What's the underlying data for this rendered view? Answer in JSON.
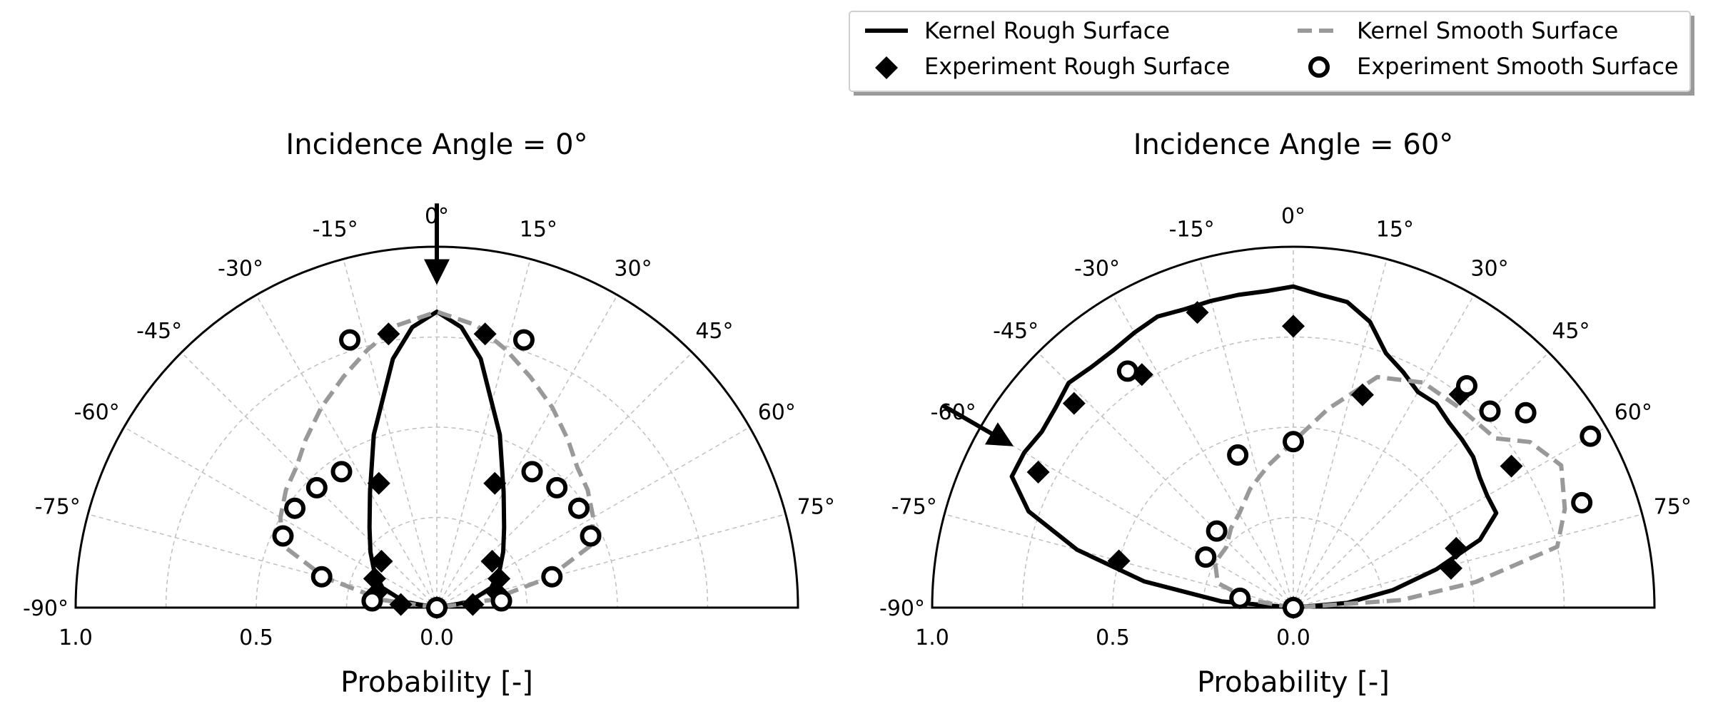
{
  "legend": {
    "items": [
      {
        "label": "Kernel Rough Surface",
        "marker": "solid-line",
        "color": "#000000"
      },
      {
        "label": "Kernel Smooth Surface",
        "marker": "dashed-line",
        "color": "#999999"
      },
      {
        "label": "Experiment Rough Surface",
        "marker": "diamond",
        "color": "#000000"
      },
      {
        "label": "Experiment Smooth Surface",
        "marker": "open-circle",
        "color": "#000000"
      }
    ]
  },
  "chart_data": [
    {
      "type": "polar-half",
      "title": "Incidence Angle = 0°",
      "xlabel": "Probability [-]",
      "radial_range": [
        0,
        1.0
      ],
      "angle_range_deg": [
        -90,
        90
      ],
      "angle_ticks": [
        -90,
        -75,
        -60,
        -45,
        -30,
        -15,
        0,
        15,
        30,
        45,
        60,
        75
      ],
      "angle_tick_labels": [
        "-90°",
        "-75°",
        "-60°",
        "-45°",
        "-30°",
        "-15°",
        "0°",
        "15°",
        "30°",
        "45°",
        "60°",
        "75°"
      ],
      "radial_tick_labels": [
        "1.0",
        "0.5",
        "0.0"
      ],
      "radial_tick_values": [
        1.0,
        0.5,
        0.0
      ],
      "grid": true,
      "incidence_arrow_deg": 0,
      "series": [
        {
          "name": "Kernel Rough Surface",
          "style": "line",
          "points": [
            [
              -90,
              0
            ],
            [
              -80,
              0.09
            ],
            [
              -70,
              0.16
            ],
            [
              -60,
              0.2
            ],
            [
              -50,
              0.24
            ],
            [
              -40,
              0.29
            ],
            [
              -30,
              0.37
            ],
            [
              -20,
              0.51
            ],
            [
              -10,
              0.7
            ],
            [
              -5,
              0.78
            ],
            [
              0,
              0.82
            ],
            [
              5,
              0.78
            ],
            [
              10,
              0.7
            ],
            [
              20,
              0.51
            ],
            [
              30,
              0.37
            ],
            [
              40,
              0.29
            ],
            [
              50,
              0.24
            ],
            [
              60,
              0.2
            ],
            [
              70,
              0.16
            ],
            [
              80,
              0.09
            ],
            [
              90,
              0
            ]
          ]
        },
        {
          "name": "Kernel Smooth Surface",
          "style": "dashed",
          "points": [
            [
              -90,
              0
            ],
            [
              -82,
              0.15
            ],
            [
              -75,
              0.32
            ],
            [
              -68,
              0.46
            ],
            [
              -60,
              0.5
            ],
            [
              -52,
              0.53
            ],
            [
              -45,
              0.55
            ],
            [
              -38,
              0.59
            ],
            [
              -30,
              0.64
            ],
            [
              -22,
              0.69
            ],
            [
              -15,
              0.74
            ],
            [
              -8,
              0.79
            ],
            [
              0,
              0.82
            ],
            [
              8,
              0.79
            ],
            [
              15,
              0.74
            ],
            [
              22,
              0.69
            ],
            [
              30,
              0.64
            ],
            [
              38,
              0.59
            ],
            [
              45,
              0.55
            ],
            [
              52,
              0.53
            ],
            [
              60,
              0.5
            ],
            [
              68,
              0.46
            ],
            [
              75,
              0.32
            ],
            [
              82,
              0.15
            ],
            [
              90,
              0
            ]
          ]
        },
        {
          "name": "Experiment Rough Surface",
          "style": "diamond",
          "points": [
            [
              -85,
              0.1
            ],
            [
              -75,
              0.17
            ],
            [
              -65,
              0.19
            ],
            [
              -50,
              0.2
            ],
            [
              -25,
              0.38
            ],
            [
              -10,
              0.77
            ],
            [
              10,
              0.77
            ],
            [
              25,
              0.38
            ],
            [
              50,
              0.2
            ],
            [
              65,
              0.19
            ],
            [
              75,
              0.17
            ],
            [
              85,
              0.1
            ],
            [
              0,
              0.0
            ]
          ]
        },
        {
          "name": "Experiment Smooth Surface",
          "style": "circle",
          "points": [
            [
              -84,
              0.18
            ],
            [
              -75,
              0.33
            ],
            [
              -65,
              0.47
            ],
            [
              -55,
              0.48
            ],
            [
              -45,
              0.47
            ],
            [
              -35,
              0.46
            ],
            [
              -18,
              0.78
            ],
            [
              18,
              0.78
            ],
            [
              35,
              0.46
            ],
            [
              45,
              0.47
            ],
            [
              55,
              0.48
            ],
            [
              65,
              0.47
            ],
            [
              75,
              0.33
            ],
            [
              84,
              0.18
            ],
            [
              0,
              0.0
            ]
          ]
        }
      ]
    },
    {
      "type": "polar-half",
      "title": "Incidence Angle = 60°",
      "xlabel": "Probability [-]",
      "radial_range": [
        0,
        1.0
      ],
      "angle_range_deg": [
        -90,
        90
      ],
      "angle_ticks": [
        -90,
        -75,
        -60,
        -45,
        -30,
        -15,
        0,
        15,
        30,
        45,
        60,
        75
      ],
      "angle_tick_labels": [
        "-90°",
        "-75°",
        "-60°",
        "-45°",
        "-30°",
        "-15°",
        "0°",
        "15°",
        "30°",
        "45°",
        "60°",
        "75°"
      ],
      "radial_tick_labels": [
        "1.0",
        "0.5",
        "0.0"
      ],
      "radial_tick_values": [
        1.0,
        0.5,
        0.0
      ],
      "grid": true,
      "incidence_arrow_deg": -60,
      "series": [
        {
          "name": "Kernel Rough Surface",
          "style": "line",
          "points": [
            [
              -90,
              0
            ],
            [
              -85,
              0.2
            ],
            [
              -80,
              0.42
            ],
            [
              -75,
              0.62
            ],
            [
              -70,
              0.78
            ],
            [
              -65,
              0.86
            ],
            [
              -60,
              0.86
            ],
            [
              -55,
              0.85
            ],
            [
              -50,
              0.86
            ],
            [
              -45,
              0.88
            ],
            [
              -40,
              0.87
            ],
            [
              -35,
              0.87
            ],
            [
              -30,
              0.88
            ],
            [
              -25,
              0.89
            ],
            [
              -20,
              0.88
            ],
            [
              -15,
              0.88
            ],
            [
              -10,
              0.88
            ],
            [
              -5,
              0.88
            ],
            [
              0,
              0.89
            ],
            [
              5,
              0.87
            ],
            [
              10,
              0.86
            ],
            [
              15,
              0.82
            ],
            [
              20,
              0.75
            ],
            [
              25,
              0.72
            ],
            [
              30,
              0.69
            ],
            [
              35,
              0.69
            ],
            [
              40,
              0.67
            ],
            [
              45,
              0.66
            ],
            [
              50,
              0.65
            ],
            [
              55,
              0.63
            ],
            [
              60,
              0.62
            ],
            [
              65,
              0.62
            ],
            [
              70,
              0.55
            ],
            [
              75,
              0.41
            ],
            [
              80,
              0.28
            ],
            [
              85,
              0.15
            ],
            [
              90,
              0
            ]
          ]
        },
        {
          "name": "Kernel Smooth Surface",
          "style": "dashed",
          "points": [
            [
              -90,
              0
            ],
            [
              -80,
              0.12
            ],
            [
              -72,
              0.22
            ],
            [
              -60,
              0.25
            ],
            [
              -48,
              0.25
            ],
            [
              -38,
              0.28
            ],
            [
              -30,
              0.3
            ],
            [
              -20,
              0.35
            ],
            [
              -10,
              0.4
            ],
            [
              0,
              0.46
            ],
            [
              10,
              0.56
            ],
            [
              20,
              0.68
            ],
            [
              30,
              0.72
            ],
            [
              40,
              0.72
            ],
            [
              50,
              0.73
            ],
            [
              55,
              0.8
            ],
            [
              62,
              0.84
            ],
            [
              70,
              0.8
            ],
            [
              77,
              0.75
            ],
            [
              82,
              0.51
            ],
            [
              86,
              0.3
            ],
            [
              90,
              0
            ]
          ]
        },
        {
          "name": "Experiment Rough Surface",
          "style": "diamond",
          "points": [
            [
              -90,
              0
            ],
            [
              -75,
              0.5
            ],
            [
              -62,
              0.8
            ],
            [
              -47,
              0.83
            ],
            [
              -33,
              0.77
            ],
            [
              -18,
              0.86
            ],
            [
              0,
              0.78
            ],
            [
              18,
              0.62
            ],
            [
              38,
              0.75
            ],
            [
              57,
              0.72
            ],
            [
              70,
              0.48
            ],
            [
              76,
              0.45
            ]
          ]
        },
        {
          "name": "Experiment Smooth Surface",
          "style": "circle",
          "points": [
            [
              -90,
              0
            ],
            [
              -80,
              0.15
            ],
            [
              -60,
              0.28
            ],
            [
              -45,
              0.3
            ],
            [
              -20,
              0.45
            ],
            [
              0,
              0.46
            ],
            [
              38,
              0.78
            ],
            [
              45,
              0.77
            ],
            [
              50,
              0.84
            ],
            [
              60,
              0.95
            ],
            [
              70,
              0.85
            ],
            [
              -35,
              0.8
            ]
          ]
        }
      ]
    }
  ]
}
